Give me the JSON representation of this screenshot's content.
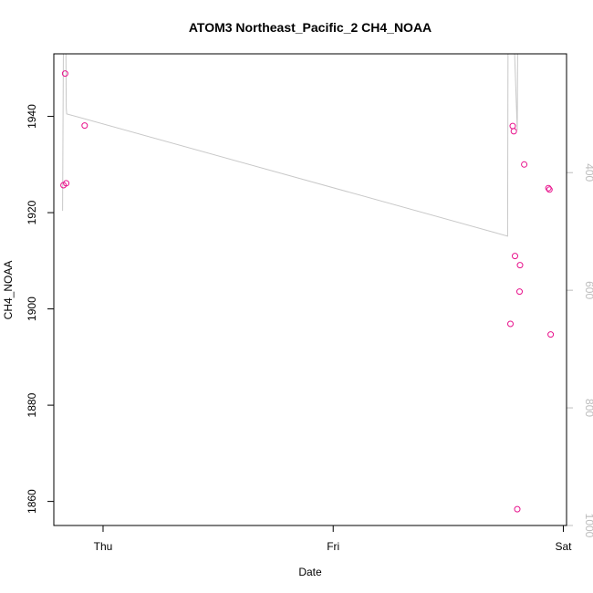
{
  "chart_data": {
    "type": "scatter",
    "title": "ATOM3 Northeast_Pacific_2 CH4_NOAA",
    "xlabel": "Date",
    "ylabel": "CH4_NOAA",
    "x_ticks": [
      "Thu",
      "Fri",
      "Sat"
    ],
    "y_ticks": [
      1860,
      1880,
      1900,
      1920,
      1940
    ],
    "y2_ticks": [
      400,
      600,
      800,
      1000
    ],
    "xlim": [
      -0.214,
      2.014
    ],
    "ylim": [
      1855.0,
      1953.0
    ],
    "y2lim": [
      1000,
      198
    ],
    "y2_reversed": true,
    "colors": {
      "points": "#e8128c",
      "line": "#c8c8c8",
      "right_axis": "#bdbdbd"
    },
    "series": [
      {
        "type": "scatter",
        "axis": "left",
        "x": [
          -0.172,
          -0.165,
          -0.16,
          -0.08,
          1.77,
          1.78,
          1.785,
          1.79,
          1.8,
          1.81,
          1.812,
          1.83,
          1.935,
          1.94,
          1.945
        ],
        "y": [
          1925.7,
          1948.9,
          1926.1,
          1938.1,
          1896.9,
          1938.0,
          1936.9,
          1911.0,
          1858.4,
          1903.6,
          1909.1,
          1930.0,
          1925.1,
          1924.8,
          1894.7
        ]
      },
      {
        "type": "line",
        "axis": "right",
        "x": [
          -0.176,
          -0.172,
          -0.168,
          -0.165,
          -0.162,
          -0.16,
          -0.158,
          1.758,
          1.76,
          1.763,
          1.782,
          1.784,
          1.8,
          1.802,
          1.806
        ],
        "y": [
          465,
          150,
          150,
          150,
          150,
          290,
          300,
          508,
          150,
          150,
          150,
          150,
          328,
          150,
          150
        ]
      }
    ]
  }
}
